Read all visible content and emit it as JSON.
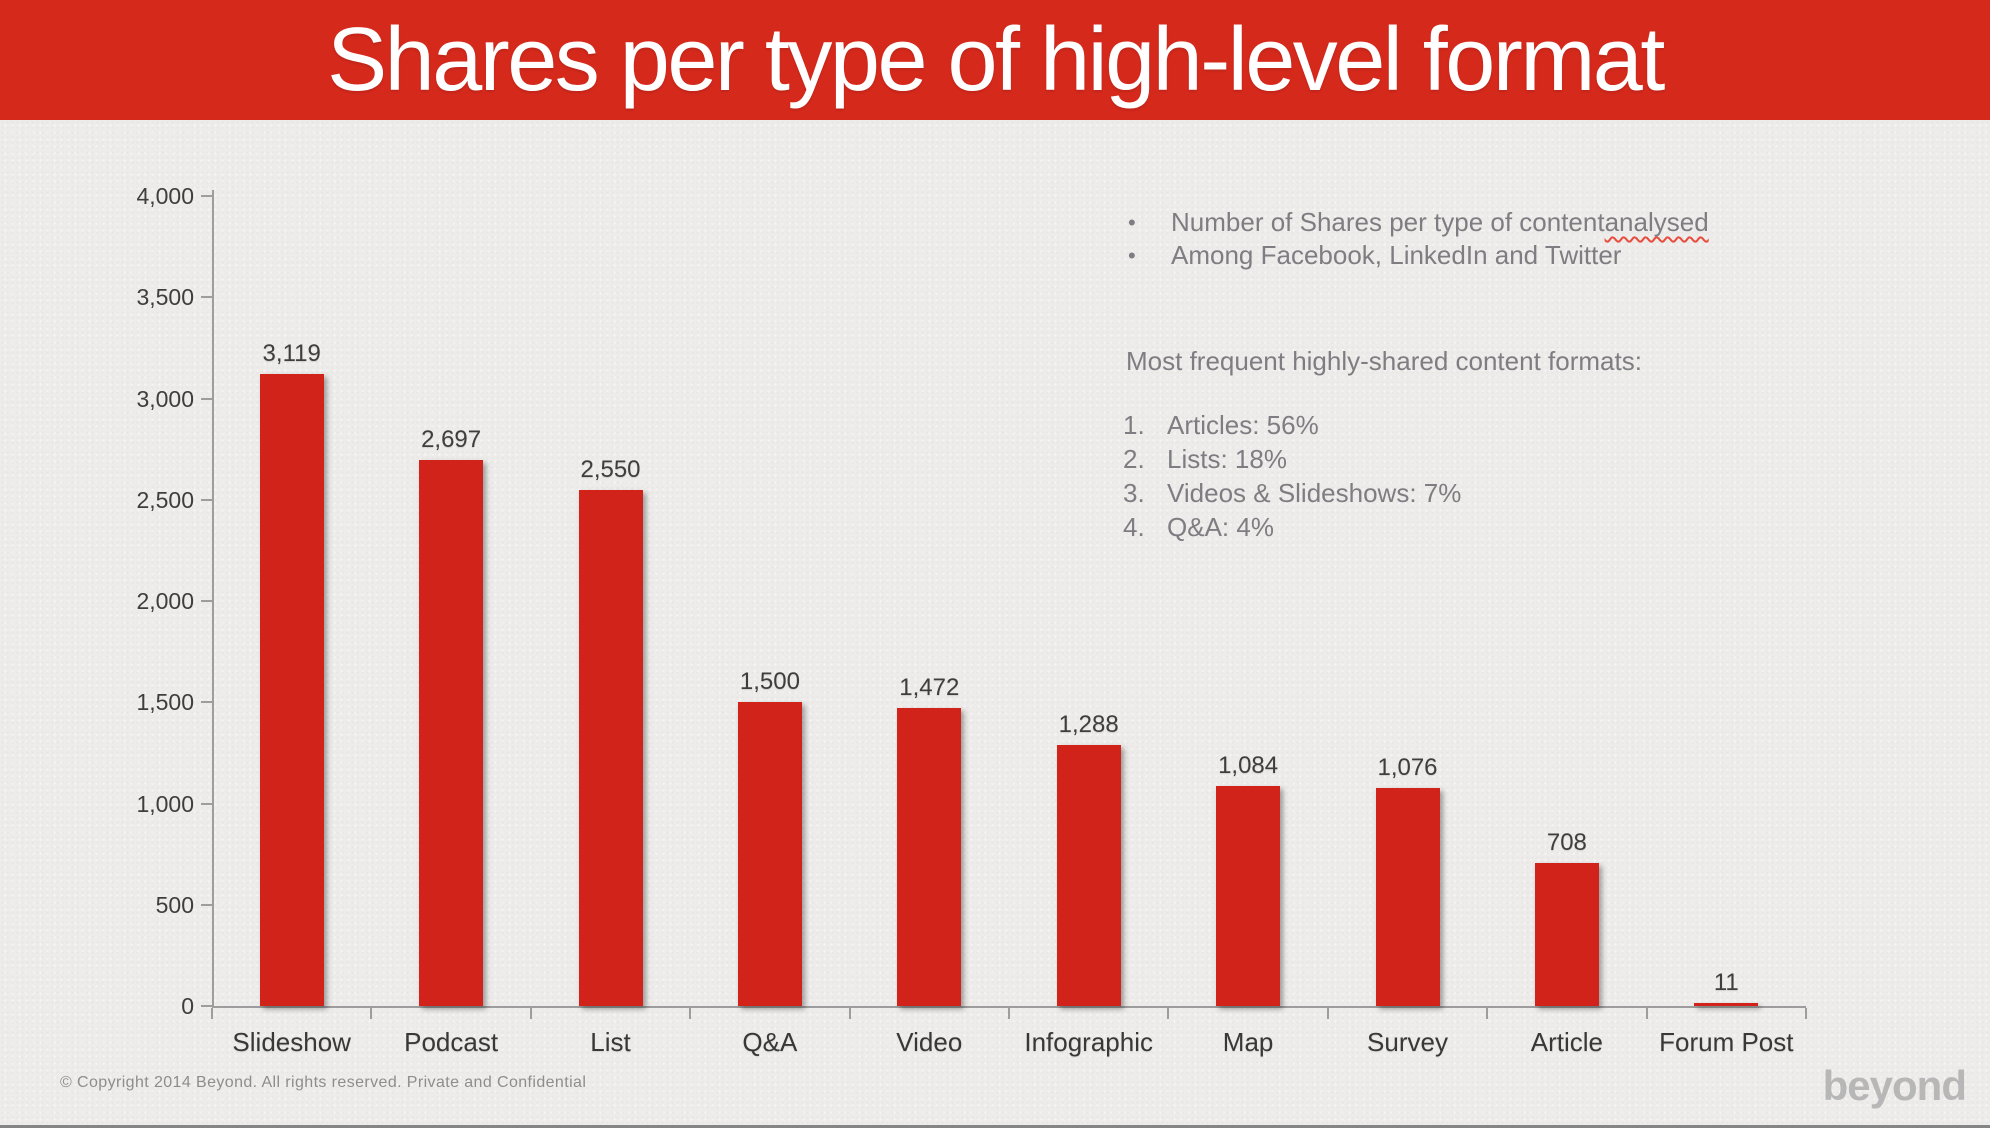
{
  "header": {
    "title": "Shares per type of high-level format",
    "bg_color": "#d5291c",
    "text_color": "#ffffff"
  },
  "notes": {
    "bullets": [
      {
        "text": "Number of Shares per type of content ",
        "spellcheck_word": "analysed"
      },
      {
        "text": "Among Facebook, LinkedIn and Twitter",
        "spellcheck_word": ""
      }
    ],
    "heading": "Most frequent highly-shared content formats:",
    "ranked": [
      {
        "num": "1.",
        "text": "Articles: 56%"
      },
      {
        "num": "2.",
        "text": "Lists: 18%"
      },
      {
        "num": "3.",
        "text": "Videos & Slideshows: 7%"
      },
      {
        "num": "4.",
        "text": "Q&A: 4%"
      }
    ]
  },
  "footer": {
    "copyright": "© Copyright 2014 Beyond. All rights reserved. Private and Confidential",
    "logo_text": "beyond"
  },
  "chart_data": {
    "type": "bar",
    "categories": [
      "Slideshow",
      "Podcast",
      "List",
      "Q&A",
      "Video",
      "Infographic",
      "Map",
      "Survey",
      "Article",
      "Forum Post"
    ],
    "values": [
      3119,
      2697,
      2550,
      1500,
      1472,
      1288,
      1084,
      1076,
      708,
      11
    ],
    "value_labels": [
      "3,119",
      "2,697",
      "2,550",
      "1,500",
      "1,472",
      "1,288",
      "1,084",
      "1,076",
      "708",
      "11"
    ],
    "title": "Shares per type of high-level format",
    "xlabel": "",
    "ylabel": "",
    "ylim": [
      0,
      4000
    ],
    "yticks": [
      0,
      500,
      1000,
      1500,
      2000,
      2500,
      3000,
      3500,
      4000
    ],
    "ytick_labels": [
      "0",
      "500",
      "1,000",
      "1,500",
      "2,000",
      "2,500",
      "3,000",
      "3,500",
      "4,000"
    ],
    "bar_color": "#d1231a",
    "axis_color": "#9d9d9d",
    "grid": false,
    "legend": null
  }
}
